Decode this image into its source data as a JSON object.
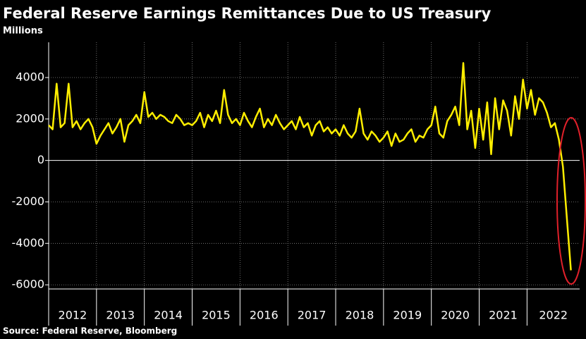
{
  "chart_data": {
    "type": "line",
    "title": "Federal Reserve Earnings Remittances Due to US Treasury",
    "subtitle": "Millions",
    "source": "Source: Federal Reserve, Bloomberg",
    "x": [
      2012,
      2012.083,
      2012.167,
      2012.25,
      2012.333,
      2012.417,
      2012.5,
      2012.583,
      2012.667,
      2012.75,
      2012.833,
      2012.917,
      2013,
      2013.083,
      2013.167,
      2013.25,
      2013.333,
      2013.417,
      2013.5,
      2013.583,
      2013.667,
      2013.75,
      2013.833,
      2013.917,
      2014,
      2014.083,
      2014.167,
      2014.25,
      2014.333,
      2014.417,
      2014.5,
      2014.583,
      2014.667,
      2014.75,
      2014.833,
      2014.917,
      2015,
      2015.083,
      2015.167,
      2015.25,
      2015.333,
      2015.417,
      2015.5,
      2015.583,
      2015.667,
      2015.75,
      2015.833,
      2015.917,
      2016,
      2016.083,
      2016.167,
      2016.25,
      2016.333,
      2016.417,
      2016.5,
      2016.583,
      2016.667,
      2016.75,
      2016.833,
      2016.917,
      2017,
      2017.083,
      2017.167,
      2017.25,
      2017.333,
      2017.417,
      2017.5,
      2017.583,
      2017.667,
      2017.75,
      2017.833,
      2017.917,
      2018,
      2018.083,
      2018.167,
      2018.25,
      2018.333,
      2018.417,
      2018.5,
      2018.583,
      2018.667,
      2018.75,
      2018.833,
      2018.917,
      2019,
      2019.083,
      2019.167,
      2019.25,
      2019.333,
      2019.417,
      2019.5,
      2019.583,
      2019.667,
      2019.75,
      2019.833,
      2019.917,
      2020,
      2020.083,
      2020.167,
      2020.25,
      2020.333,
      2020.417,
      2020.5,
      2020.583,
      2020.667,
      2020.75,
      2020.833,
      2020.917,
      2021,
      2021.083,
      2021.167,
      2021.25,
      2021.333,
      2021.417,
      2021.5,
      2021.583,
      2021.667,
      2021.75,
      2021.833,
      2021.917,
      2022,
      2022.083,
      2022.167,
      2022.25,
      2022.333,
      2022.417,
      2022.5,
      2022.583,
      2022.667,
      2022.75,
      2022.833,
      2022.917
    ],
    "series": [
      {
        "name": "Remittances",
        "color": "#ffee00",
        "values": [
          1700,
          1500,
          3700,
          1600,
          1800,
          3700,
          1600,
          1900,
          1500,
          1800,
          2000,
          1600,
          800,
          1200,
          1500,
          1800,
          1300,
          1600,
          2000,
          900,
          1700,
          1900,
          2200,
          1800,
          3300,
          2100,
          2300,
          2000,
          2200,
          2100,
          1900,
          1800,
          2200,
          2000,
          1700,
          1800,
          1700,
          1900,
          2300,
          1600,
          2200,
          1900,
          2400,
          1800,
          3400,
          2200,
          1800,
          2000,
          1700,
          2300,
          1900,
          1600,
          2100,
          2500,
          1600,
          2000,
          1700,
          2200,
          1800,
          1500,
          1700,
          1900,
          1500,
          2100,
          1600,
          1800,
          1200,
          1700,
          1900,
          1400,
          1600,
          1300,
          1500,
          1200,
          1700,
          1300,
          1100,
          1400,
          2500,
          1300,
          1000,
          1400,
          1200,
          900,
          1100,
          1400,
          700,
          1300,
          900,
          1000,
          1300,
          1500,
          900,
          1200,
          1100,
          1500,
          1700,
          2600,
          1300,
          1100,
          1900,
          2200,
          2600,
          1700,
          4700,
          1500,
          2400,
          600,
          2500,
          1000,
          2800,
          300,
          3000,
          1500,
          2900,
          2400,
          1200,
          3100,
          2000,
          3900,
          2500,
          3400,
          2200,
          3000,
          2800,
          2300,
          1600,
          1800,
          1000,
          -300,
          -2800,
          -5300
        ]
      }
    ],
    "xlim": [
      2012,
      2023.1
    ],
    "xticks": [
      {
        "value": 2012,
        "label": "2012"
      },
      {
        "value": 2013,
        "label": "2013"
      },
      {
        "value": 2014,
        "label": "2014"
      },
      {
        "value": 2015,
        "label": "2015"
      },
      {
        "value": 2016,
        "label": "2016"
      },
      {
        "value": 2017,
        "label": "2017"
      },
      {
        "value": 2018,
        "label": "2018"
      },
      {
        "value": 2019,
        "label": "2019"
      },
      {
        "value": 2020,
        "label": "2020"
      },
      {
        "value": 2021,
        "label": "2021"
      },
      {
        "value": 2022,
        "label": "2022"
      }
    ],
    "ylim": [
      -6200,
      5700
    ],
    "yticks": [
      -6000,
      -4000,
      -2000,
      0,
      2000,
      4000
    ],
    "grid": true
  }
}
